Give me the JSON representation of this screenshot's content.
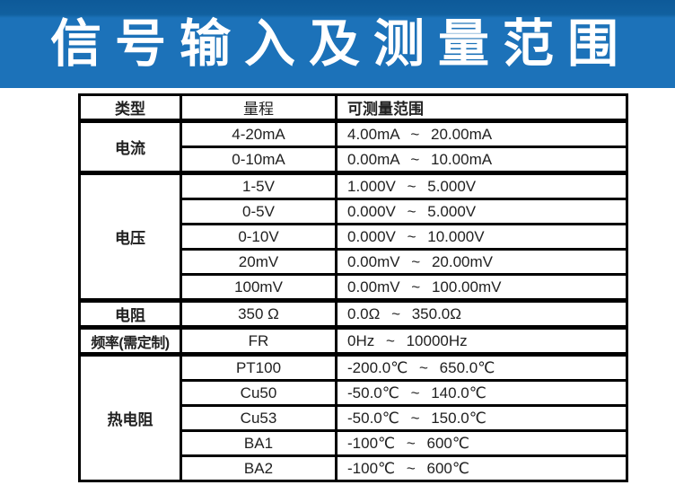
{
  "banner": {
    "title": "信号输入及测量范围",
    "bg_color": "#1c72b9",
    "bg_top_shade": "#0e5a99",
    "text_color": "#ffffff"
  },
  "table": {
    "border_color": "#000000",
    "text_color": "#212121",
    "headers": [
      "类型",
      "量程",
      "可测量范围"
    ],
    "groups": [
      {
        "type": "电流",
        "rows": [
          [
            "4-20mA",
            "4.00mA ~ 20.00mA"
          ],
          [
            "0-10mA",
            "0.00mA ~ 10.00mA"
          ]
        ]
      },
      {
        "type": "电压",
        "rows": [
          [
            "1-5V",
            "1.000V ~ 5.000V"
          ],
          [
            "0-5V",
            "0.000V ~ 5.000V"
          ],
          [
            "0-10V",
            "0.000V ~ 10.000V"
          ],
          [
            "20mV",
            "0.00mV ~ 20.00mV"
          ],
          [
            "100mV",
            "0.00mV ~ 100.00mV"
          ]
        ]
      },
      {
        "type": "电阻",
        "rows": [
          [
            "350 Ω",
            "0.0Ω ~ 350.0Ω"
          ]
        ]
      },
      {
        "type": "频率(需定制)",
        "rows": [
          [
            "FR",
            "0Hz ~ 10000Hz"
          ]
        ]
      },
      {
        "type": "热电阻",
        "rows": [
          [
            "PT100",
            "-200.0℃ ~ 650.0℃"
          ],
          [
            "Cu50",
            "-50.0℃ ~ 140.0℃"
          ],
          [
            "Cu53",
            "-50.0℃ ~ 150.0℃"
          ],
          [
            "BA1",
            "-100℃ ~ 600℃"
          ],
          [
            "BA2",
            "-100℃ ~ 600℃"
          ]
        ]
      }
    ]
  }
}
